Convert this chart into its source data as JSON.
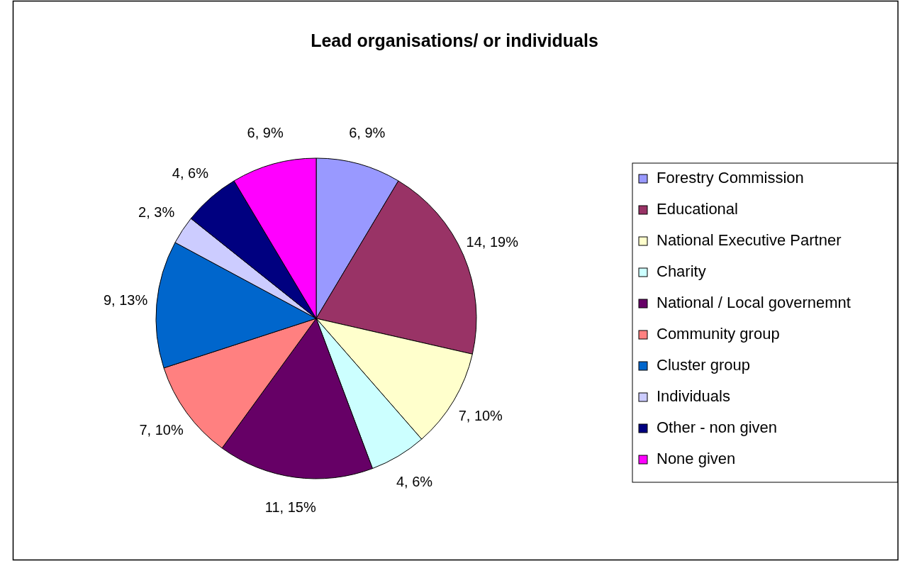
{
  "chart_data": {
    "type": "pie",
    "title": "Lead organisations/ or individuals",
    "categories": [
      "Forestry Commission",
      "Educational",
      "National Executive Partner",
      "Charity",
      "National / Local governemnt",
      "Community group",
      "Cluster group",
      "Individuals",
      "Other - non given",
      "None given"
    ],
    "values": [
      6,
      14,
      7,
      4,
      11,
      7,
      9,
      2,
      4,
      6
    ],
    "colors": [
      "#9999ff",
      "#993366",
      "#ffffcc",
      "#ccffff",
      "#660066",
      "#ff8080",
      "#0066cc",
      "#ccccff",
      "#000080",
      "#ff00ff"
    ],
    "value_labels": [
      "6, 9%",
      "14, 19%",
      "7, 10%",
      "4, 6%",
      "11, 15%",
      "7, 10%",
      "9, 13%",
      "2, 3%",
      "4, 6%",
      "6, 9%"
    ],
    "legend": "right"
  }
}
